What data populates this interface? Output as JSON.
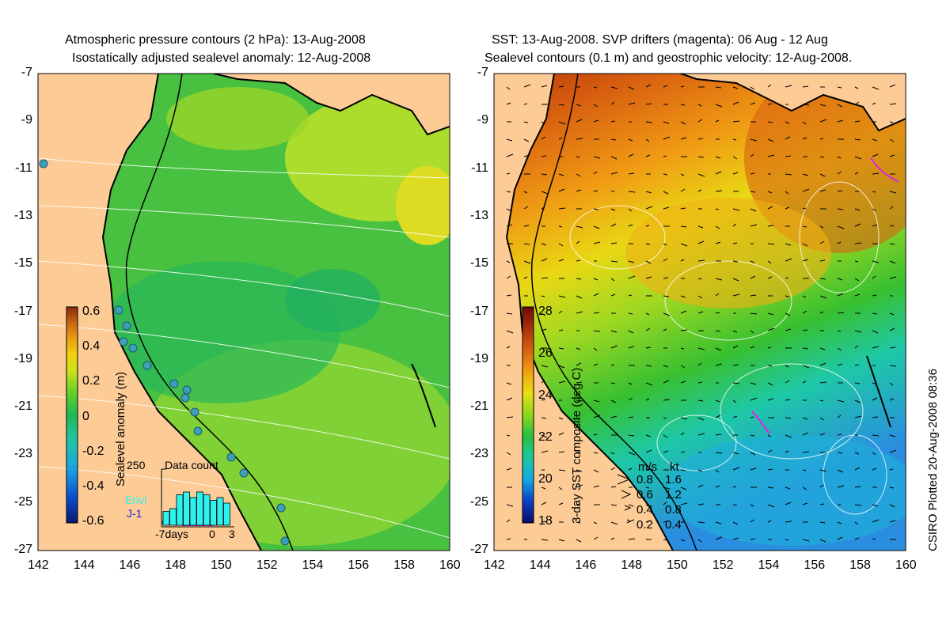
{
  "left_panel": {
    "title_line1": "Atmospheric pressure contours (2 hPa): 13-Aug-2008",
    "title_line2": "Isostatically adjusted sealevel anomaly: 12-Aug-2008",
    "x_ticks": [
      "142",
      "144",
      "146",
      "148",
      "150",
      "152",
      "154",
      "156",
      "158",
      "160"
    ],
    "y_ticks": [
      "-7",
      "-9",
      "-11",
      "-13",
      "-15",
      "-17",
      "-19",
      "-21",
      "-23",
      "-25",
      "-27"
    ],
    "colorbar": {
      "label": "Sealevel anomaly (m)",
      "ticks": [
        "0.6",
        "0.4",
        "0.2",
        "0",
        "-0.2",
        "-0.4",
        "-0.6"
      ],
      "colors": [
        "#08186e",
        "#0a4fd0",
        "#1aa3e0",
        "#1fc6a8",
        "#22b855",
        "#5ed028",
        "#c8e21a",
        "#f3cf10",
        "#e89a12",
        "#c86214",
        "#8a2a0c"
      ]
    },
    "inset": {
      "max_label": "250",
      "title": "Data count",
      "legend_envi": "Envi",
      "legend_j1": "J-1",
      "axis_left": "-7days",
      "axis_mid": "0",
      "axis_right": "3",
      "bar_values": [
        0.25,
        0.3,
        0.55,
        0.6,
        0.5,
        0.6,
        0.55,
        0.45,
        0.5,
        0.4
      ],
      "envi_color": "#2ef2ee",
      "j1_color": "#1a22d8"
    }
  },
  "right_panel": {
    "title_line1": "SST: 13-Aug-2008. SVP drifters (magenta): 06 Aug - 12 Aug",
    "title_line2": "Sealevel contours (0.1 m) and geostrophic velocity: 12-Aug-2008.",
    "x_ticks": [
      "142",
      "144",
      "146",
      "148",
      "150",
      "152",
      "154",
      "156",
      "158",
      "160"
    ],
    "y_ticks": [
      "-7",
      "-9",
      "-11",
      "-13",
      "-15",
      "-17",
      "-19",
      "-21",
      "-23",
      "-25",
      "-27"
    ],
    "colorbar": {
      "label": "3-day SST composite (deg C)",
      "ticks": [
        "28",
        "26",
        "24",
        "22",
        "20",
        "18"
      ],
      "colors": [
        "#0a0a6a",
        "#0a40c8",
        "#12a8e8",
        "#1ec8a0",
        "#28c040",
        "#8ad81e",
        "#e8e012",
        "#f0a010",
        "#d86010",
        "#a8300c",
        "#6e0a0a"
      ]
    },
    "velocity_legend": {
      "header_ms": "m/s",
      "header_kt": "kt",
      "rows": [
        {
          "ms": "0.8",
          "kt": "1.6"
        },
        {
          "ms": "0.6",
          "kt": "1.2"
        },
        {
          "ms": "0.4",
          "kt": "0.8"
        },
        {
          "ms": "0.2",
          "kt": "0.4"
        }
      ]
    }
  },
  "credit": "CSIRO Plotted 20-Aug-2008 08:36",
  "colors": {
    "land": "#fccb96",
    "coast": "#000000",
    "contour": "#ffffff",
    "gauge": "#3ea0b8",
    "drifter": "#e020e0"
  }
}
